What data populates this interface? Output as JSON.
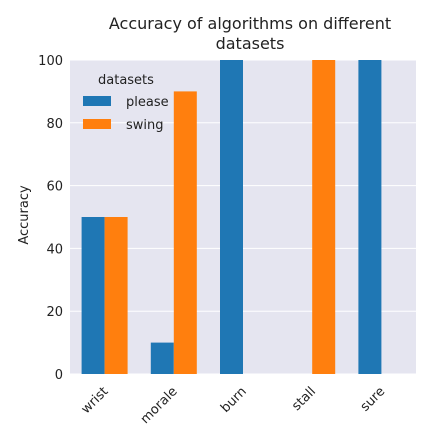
{
  "chart_data": {
    "type": "bar",
    "title": "Accuracy of algorithms on different datasets",
    "title_lines": [
      "Accuracy of algorithms on different",
      "datasets"
    ],
    "xlabel": "",
    "ylabel": "Accuracy",
    "categories": [
      "wrist",
      "morale",
      "burn",
      "stall",
      "sure"
    ],
    "series": [
      {
        "name": "please",
        "values": [
          50,
          10,
          100,
          0,
          100
        ],
        "color": "#1f77b4"
      },
      {
        "name": "swing",
        "values": [
          50,
          90,
          0,
          100,
          0
        ],
        "color": "#ff7f0e"
      }
    ],
    "legend": {
      "title": "datasets",
      "placement": "top-left"
    },
    "ylim": [
      0,
      100
    ],
    "yticks": [
      0,
      20,
      40,
      60,
      80,
      100
    ],
    "grid": true,
    "background": "#e5e5f0",
    "grid_color": "#ffffff"
  }
}
